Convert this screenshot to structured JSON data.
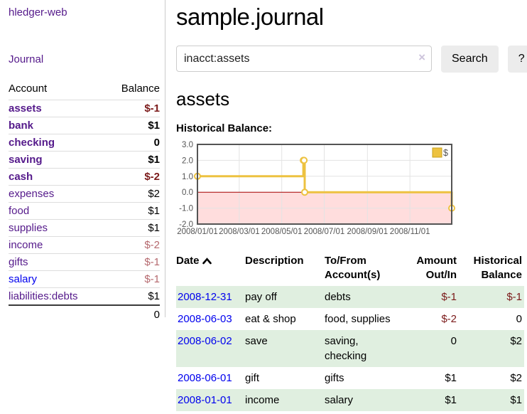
{
  "app": {
    "brand": "hledger-web",
    "nav_journal": "Journal"
  },
  "sidebar": {
    "accounts_header": {
      "account": "Account",
      "balance": "Balance"
    },
    "accounts": [
      {
        "name": "assets",
        "indent": 1,
        "bold": true,
        "balance": "$-1",
        "balance_style": "negb"
      },
      {
        "name": "bank",
        "indent": 2,
        "bold": true,
        "balance": "$1",
        "balance_style": "pos"
      },
      {
        "name": "checking",
        "indent": 3,
        "bold": true,
        "balance": "0",
        "balance_style": "pos"
      },
      {
        "name": "saving",
        "indent": 3,
        "bold": true,
        "balance": "$1",
        "balance_style": "pos"
      },
      {
        "name": "cash",
        "indent": 2,
        "bold": true,
        "balance": "$-2",
        "balance_style": "negb"
      },
      {
        "name": "expenses",
        "indent": 1,
        "bold": false,
        "balance": "$2",
        "balance_style": "pos"
      },
      {
        "name": "food",
        "indent": 2,
        "bold": false,
        "balance": "$1",
        "balance_style": "pos"
      },
      {
        "name": "supplies",
        "indent": 2,
        "bold": false,
        "balance": "$1",
        "balance_style": "pos"
      },
      {
        "name": "income",
        "indent": 1,
        "bold": false,
        "balance": "$-2",
        "balance_style": "neg"
      },
      {
        "name": "gifts",
        "indent": 2,
        "bold": false,
        "balance": "$-1",
        "balance_style": "neg"
      },
      {
        "name": "salary",
        "indent": 2,
        "bold": false,
        "balance": "$-1",
        "balance_style": "neg",
        "link_color": "blue"
      },
      {
        "name": "liabilities:debts",
        "indent": 1,
        "bold": false,
        "balance": "$1",
        "balance_style": "pos"
      }
    ],
    "total": "0"
  },
  "header": {
    "title": "sample.journal"
  },
  "search": {
    "value": "inacct:assets",
    "clear_icon": "×",
    "search_button": "Search",
    "help_button": "?"
  },
  "main": {
    "heading": "assets",
    "chart_label": "Historical Balance:"
  },
  "chart_data": {
    "type": "line",
    "steps": true,
    "title": "Historical Balance:",
    "series": [
      {
        "name": "$",
        "color": "#edc240",
        "points": [
          [
            "2008-01-01",
            1
          ],
          [
            "2008-06-01",
            2
          ],
          [
            "2008-06-02",
            2
          ],
          [
            "2008-06-03",
            0
          ],
          [
            "2008-12-31",
            -1
          ]
        ]
      }
    ],
    "x_range": [
      "2008-01-01",
      "2008-12-31"
    ],
    "ylim": [
      -2,
      3
    ],
    "yticks": [
      -2,
      -1,
      0,
      1,
      2,
      3
    ],
    "xticks": [
      {
        "date": "2008-01-01",
        "label": "2008/01/01"
      },
      {
        "date": "2008-03-01",
        "label": "2008/03/01"
      },
      {
        "date": "2008-05-01",
        "label": "2008/05/01"
      },
      {
        "date": "2008-07-01",
        "label": "2008/07/01"
      },
      {
        "date": "2008-09-01",
        "label": "2008/09/01"
      },
      {
        "date": "2008-11-01",
        "label": "2008/11/01"
      }
    ],
    "legend_position": "top-right",
    "grid": true,
    "negative_region_color": "#ffdddd",
    "zero_line_color": "#aa0000",
    "axis_color": "#545454",
    "grid_color": "#e3e3e3",
    "border_color": "#545454",
    "point_fill": "#ffffff",
    "legend_swatch_border": "#c9a21c"
  },
  "register": {
    "columns": {
      "date": "Date",
      "description": "Description",
      "accounts": "To/From Account(s)",
      "amount": "Amount Out/In",
      "balance": "Historical Balance"
    },
    "rows": [
      {
        "date": "2008-12-31",
        "description": "pay off",
        "accounts": "debts",
        "amount": "$-1",
        "amount_negative": true,
        "balance": "$-1",
        "balance_negative": true
      },
      {
        "date": "2008-06-03",
        "description": "eat & shop",
        "accounts": "food, supplies",
        "amount": "$-2",
        "amount_negative": true,
        "balance": "0",
        "balance_negative": false
      },
      {
        "date": "2008-06-02",
        "description": "save",
        "accounts": "saving, checking",
        "amount": "0",
        "amount_negative": false,
        "balance": "$2",
        "balance_negative": false
      },
      {
        "date": "2008-06-01",
        "description": "gift",
        "accounts": "gifts",
        "amount": "$1",
        "amount_negative": false,
        "balance": "$2",
        "balance_negative": false
      },
      {
        "date": "2008-01-01",
        "description": "income",
        "accounts": "salary",
        "amount": "$1",
        "amount_negative": false,
        "balance": "$1",
        "balance_negative": false
      }
    ]
  },
  "colors": {
    "link_purple": "#551a8b",
    "link_blue": "#0000ee",
    "negative_bold_red": "#7b1a1a",
    "negative_soft_red": "#b5696e",
    "row_green": "#e0efe0",
    "divider_gray": "#cccccc",
    "button_gray": "#ececec"
  }
}
